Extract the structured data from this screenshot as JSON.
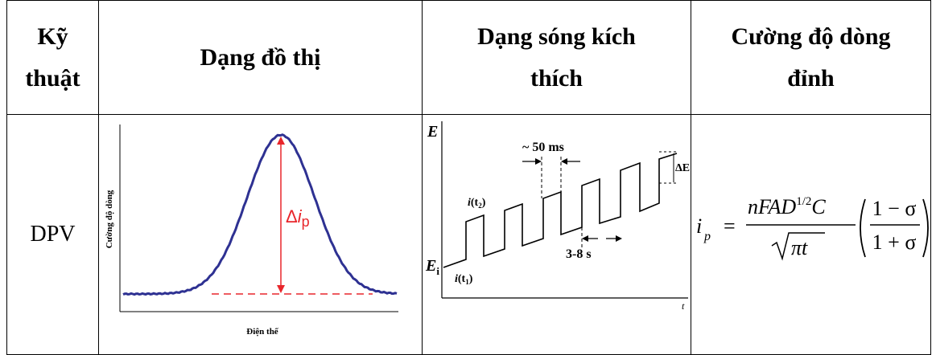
{
  "table": {
    "headers": {
      "technique": [
        "Kỹ",
        "thuật"
      ],
      "graph": "Dạng đồ thị",
      "waveform": [
        "Dạng sóng kích",
        "thích"
      ],
      "peak_current": [
        "Cường độ dòng",
        "đỉnh"
      ]
    },
    "row": {
      "technique": "DPV"
    }
  },
  "graph_figure": {
    "ylabel": "Cường độ dòng",
    "xlabel": "Điện thế",
    "peak_label_delta": "Δ",
    "peak_label_i": "i",
    "peak_label_sub": "p",
    "curve_color": "#2e3192",
    "annotation_color": "#e8262b"
  },
  "waveform_figure": {
    "axis_label": "E",
    "start_label": "E",
    "start_sub": "i",
    "pulse_label": "~ 50 ms",
    "step_label": "ΔE",
    "period_label": "3-8 s",
    "i_t1": "i",
    "i_t1_sub": "(t",
    "i_t1_sub2": "1",
    "i_t1_end": ")",
    "i_t2": "i",
    "i_t2_sub": "(t",
    "i_t2_sub2": "2",
    "i_t2_end": ")",
    "x_axis_fragment": "t"
  },
  "formula": {
    "lhs": "i",
    "lhs_sub": "p",
    "eq": "=",
    "numerator": "nFAD",
    "numerator_exp": "1/2",
    "numerator_tail": "C",
    "denominator": "πt",
    "frac2_num": "1 − σ",
    "frac2_den": "1 + σ"
  }
}
